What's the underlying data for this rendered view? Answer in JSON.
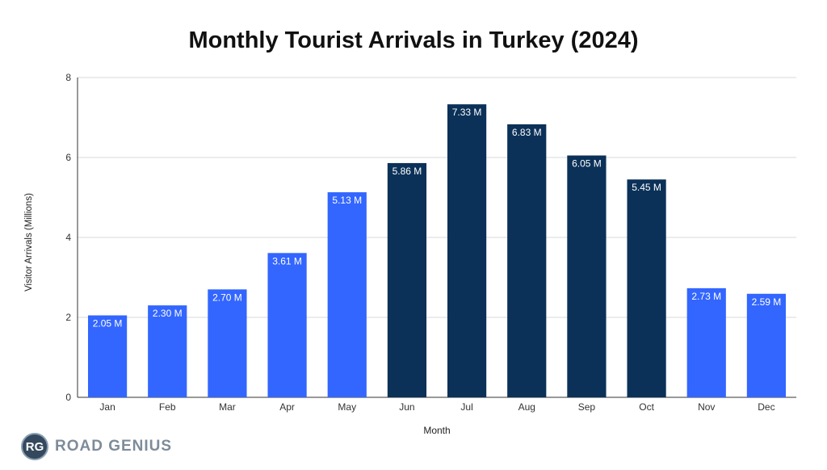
{
  "chart_data": {
    "type": "bar",
    "title": "Monthly Tourist Arrivals in Turkey (2024)",
    "xlabel": "Month",
    "ylabel": "Visitor Arrivals (Millions)",
    "ylim": [
      0,
      8
    ],
    "yticks": [
      0,
      2,
      4,
      6,
      8
    ],
    "grid": true,
    "categories": [
      "Jan",
      "Feb",
      "Mar",
      "Apr",
      "May",
      "Jun",
      "Jul",
      "Aug",
      "Sep",
      "Oct",
      "Nov",
      "Dec"
    ],
    "values": [
      2.05,
      2.3,
      2.7,
      3.61,
      5.13,
      5.86,
      7.33,
      6.83,
      6.05,
      5.45,
      2.73,
      2.59
    ],
    "data_labels": [
      "2.05 M",
      "2.30 M",
      "2.70 M",
      "3.61 M",
      "5.13 M",
      "5.86 M",
      "7.33 M",
      "6.83 M",
      "6.05 M",
      "5.45 M",
      "2.73 M",
      "2.59 M"
    ],
    "bar_colors": [
      "#3366ff",
      "#3366ff",
      "#3366ff",
      "#3366ff",
      "#3366ff",
      "#0b3158",
      "#0b3158",
      "#0b3158",
      "#0b3158",
      "#0b3158",
      "#3366ff",
      "#3366ff"
    ],
    "legend": "none"
  },
  "logo": {
    "badge": "RG",
    "text": "ROAD GENIUS"
  }
}
